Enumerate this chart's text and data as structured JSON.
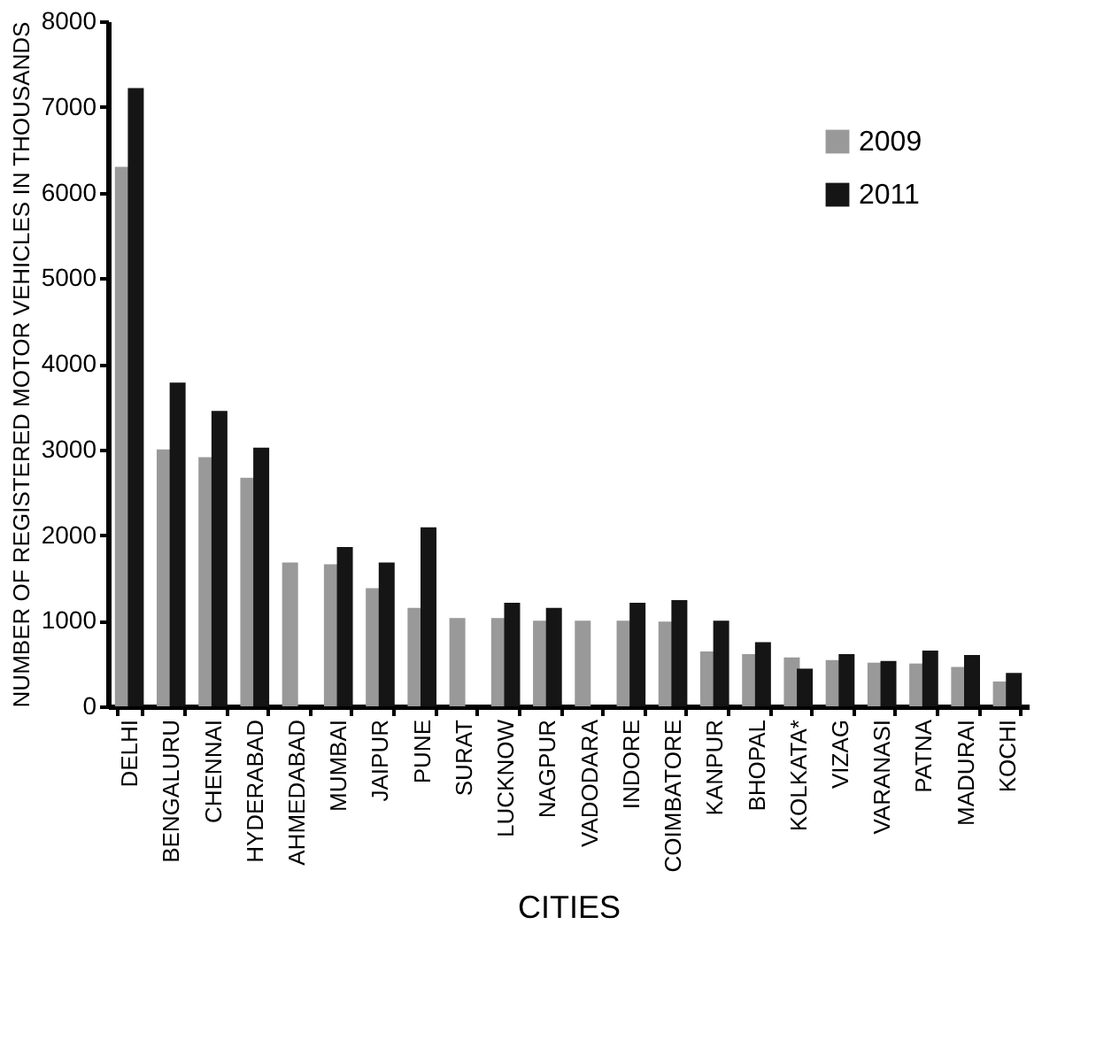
{
  "chart_data": {
    "type": "bar",
    "xlabel": "CITIES",
    "ylabel": "NUMBER OF REGISTERED MOTOR VEHICLES IN THOUSANDS",
    "categories": [
      "DELHI",
      "BENGALURU",
      "CHENNAI",
      "HYDERABAD",
      "AHMEDABAD",
      "MUMBAI",
      "JAIPUR",
      "PUNE",
      "SURAT",
      "LUCKNOW",
      "NAGPUR",
      "VADODARA",
      "INDORE",
      "COIMBATORE",
      "KANPUR",
      "BHOPAL",
      "KOLKATA*",
      "VIZAG",
      "VARANASI",
      "PATNA",
      "MADURAI",
      "KOCHI"
    ],
    "series": [
      {
        "name": "2009",
        "color": "#999999",
        "values": [
          6300,
          3000,
          2910,
          2670,
          1680,
          1660,
          1380,
          1150,
          1030,
          1030,
          1000,
          1000,
          1000,
          990,
          640,
          610,
          570,
          540,
          510,
          500,
          460,
          290
        ]
      },
      {
        "name": "2011",
        "color": "#151515",
        "values": [
          7220,
          3780,
          3450,
          3020,
          null,
          1860,
          1680,
          2090,
          null,
          1210,
          1150,
          null,
          1210,
          1240,
          1000,
          750,
          440,
          610,
          530,
          650,
          600,
          390
        ]
      }
    ],
    "ylim": [
      0,
      8000
    ],
    "yticks": [
      0,
      1000,
      2000,
      3000,
      4000,
      5000,
      6000,
      7000,
      8000
    ],
    "grid": false,
    "legend": "top right"
  }
}
